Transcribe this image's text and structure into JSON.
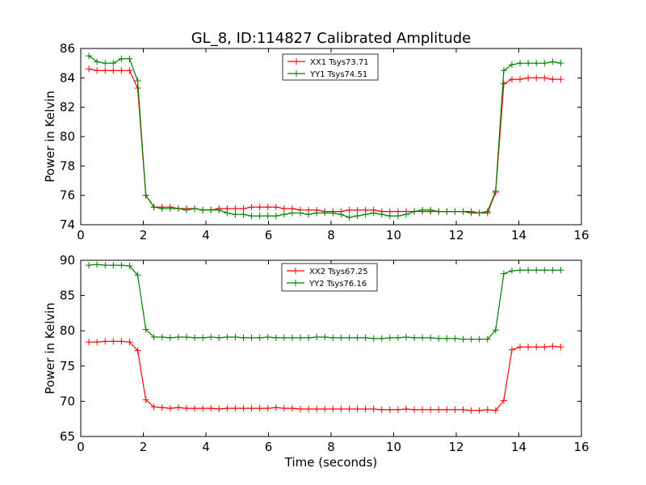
{
  "title": "GL_8, ID:114827 Calibrated Amplitude",
  "colors": {
    "red": "#ff0000",
    "green": "#008000"
  },
  "chart_data": [
    {
      "type": "line",
      "title": "GL_8, ID:114827 Calibrated Amplitude",
      "xlabel": "",
      "ylabel": "Power in Kelvin",
      "xlim": [
        0,
        16
      ],
      "ylim": [
        74,
        86
      ],
      "x_ticks": [
        "0",
        "2",
        "4",
        "6",
        "8",
        "10",
        "12",
        "14",
        "16"
      ],
      "y_ticks": [
        "74",
        "76",
        "78",
        "80",
        "82",
        "84",
        "86"
      ],
      "legend_position": "top-center",
      "marker": "+",
      "x": [
        0.26,
        0.52,
        0.78,
        1.04,
        1.3,
        1.56,
        1.82,
        2.08,
        2.34,
        2.6,
        2.86,
        3.12,
        3.38,
        3.64,
        3.9,
        4.16,
        4.42,
        4.68,
        4.94,
        5.2,
        5.46,
        5.72,
        5.98,
        6.24,
        6.5,
        6.76,
        7.02,
        7.28,
        7.54,
        7.8,
        8.06,
        8.32,
        8.58,
        8.84,
        9.1,
        9.36,
        9.62,
        9.88,
        10.14,
        10.4,
        10.66,
        10.92,
        11.18,
        11.44,
        11.7,
        11.96,
        12.22,
        12.48,
        12.74,
        13.0,
        13.26,
        13.52,
        13.78,
        14.04,
        14.3,
        14.56,
        14.82,
        15.08,
        15.34
      ],
      "series": [
        {
          "name": "XX1 Tsys73.71",
          "color": "#ff0000",
          "values": [
            84.6,
            84.5,
            84.5,
            84.5,
            84.5,
            84.5,
            83.3,
            76.0,
            75.2,
            75.2,
            75.2,
            75.1,
            75.1,
            75.1,
            75.0,
            75.0,
            75.1,
            75.1,
            75.1,
            75.1,
            75.2,
            75.2,
            75.2,
            75.2,
            75.1,
            75.1,
            75.0,
            75.0,
            75.0,
            74.9,
            74.9,
            74.9,
            75.0,
            75.0,
            75.0,
            75.0,
            74.9,
            74.9,
            74.9,
            74.9,
            74.9,
            74.9,
            74.9,
            74.9,
            74.9,
            74.9,
            74.9,
            74.9,
            74.8,
            74.8,
            76.2,
            83.6,
            83.9,
            83.9,
            84.0,
            84.0,
            84.0,
            83.9,
            83.9
          ]
        },
        {
          "name": "YY1 Tsys74.51",
          "color": "#008000",
          "values": [
            85.5,
            85.1,
            85.0,
            85.0,
            85.3,
            85.3,
            83.8,
            76.0,
            75.2,
            75.1,
            75.1,
            75.1,
            75.0,
            75.1,
            75.0,
            75.0,
            75.0,
            74.8,
            74.7,
            74.7,
            74.6,
            74.6,
            74.6,
            74.6,
            74.7,
            74.8,
            74.8,
            74.7,
            74.8,
            74.8,
            74.8,
            74.7,
            74.5,
            74.6,
            74.7,
            74.8,
            74.7,
            74.6,
            74.6,
            74.7,
            74.9,
            75.0,
            75.0,
            74.9,
            74.9,
            74.9,
            74.9,
            74.8,
            74.8,
            74.9,
            76.3,
            84.5,
            84.9,
            85.0,
            85.0,
            85.0,
            85.0,
            85.1,
            85.0
          ]
        }
      ]
    },
    {
      "type": "line",
      "title": "",
      "xlabel": "Time (seconds)",
      "ylabel": "Power in Kelvin",
      "xlim": [
        0,
        16
      ],
      "ylim": [
        65,
        90
      ],
      "x_ticks": [
        "0",
        "2",
        "4",
        "6",
        "8",
        "10",
        "12",
        "14",
        "16"
      ],
      "y_ticks": [
        "65",
        "70",
        "75",
        "80",
        "85",
        "90"
      ],
      "legend_position": "top-center",
      "marker": "+",
      "x": [
        0.26,
        0.52,
        0.78,
        1.04,
        1.3,
        1.56,
        1.82,
        2.08,
        2.34,
        2.6,
        2.86,
        3.12,
        3.38,
        3.64,
        3.9,
        4.16,
        4.42,
        4.68,
        4.94,
        5.2,
        5.46,
        5.72,
        5.98,
        6.24,
        6.5,
        6.76,
        7.02,
        7.28,
        7.54,
        7.8,
        8.06,
        8.32,
        8.58,
        8.84,
        9.1,
        9.36,
        9.62,
        9.88,
        10.14,
        10.4,
        10.66,
        10.92,
        11.18,
        11.44,
        11.7,
        11.96,
        12.22,
        12.48,
        12.74,
        13.0,
        13.26,
        13.52,
        13.78,
        14.04,
        14.3,
        14.56,
        14.82,
        15.08,
        15.34
      ],
      "series": [
        {
          "name": "XX2 Tsys67.25",
          "color": "#ff0000",
          "values": [
            78.4,
            78.4,
            78.5,
            78.5,
            78.5,
            78.4,
            77.2,
            70.2,
            69.2,
            69.1,
            69.0,
            69.1,
            69.0,
            69.0,
            69.0,
            69.0,
            68.9,
            69.0,
            69.0,
            69.0,
            69.0,
            69.0,
            69.0,
            69.1,
            69.0,
            69.0,
            68.9,
            68.9,
            68.9,
            68.9,
            68.9,
            68.9,
            68.9,
            68.9,
            68.9,
            68.9,
            68.8,
            68.8,
            68.8,
            68.9,
            68.8,
            68.8,
            68.8,
            68.8,
            68.8,
            68.8,
            68.8,
            68.7,
            68.7,
            68.8,
            68.7,
            70.1,
            77.3,
            77.7,
            77.7,
            77.7,
            77.7,
            77.8,
            77.7
          ]
        },
        {
          "name": "YY2 Tsys76.16",
          "color": "#008000",
          "values": [
            89.3,
            89.4,
            89.3,
            89.3,
            89.3,
            89.2,
            87.9,
            80.2,
            79.1,
            79.1,
            79.0,
            79.1,
            79.1,
            79.0,
            79.0,
            79.1,
            79.0,
            79.1,
            79.1,
            79.0,
            79.0,
            79.0,
            79.1,
            79.0,
            79.0,
            79.0,
            79.0,
            79.0,
            79.1,
            79.1,
            79.0,
            79.0,
            79.0,
            79.0,
            79.0,
            78.9,
            78.9,
            79.0,
            79.0,
            79.1,
            79.0,
            79.0,
            79.0,
            78.9,
            78.9,
            78.9,
            78.8,
            78.8,
            78.8,
            78.8,
            80.1,
            88.1,
            88.5,
            88.6,
            88.6,
            88.6,
            88.6,
            88.6,
            88.6
          ]
        }
      ]
    }
  ]
}
